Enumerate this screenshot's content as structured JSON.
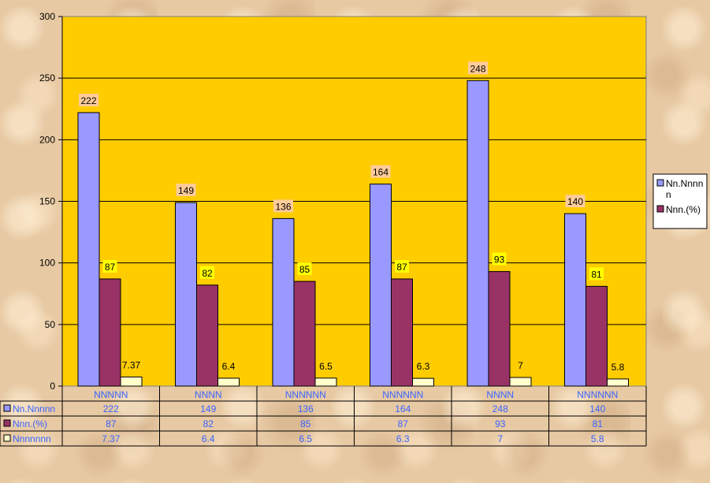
{
  "chart_data": {
    "type": "bar",
    "categories": [
      "NNNNN",
      "NNNN",
      "NNNNNN",
      "NNNNNN",
      "NNNN",
      "NNNNNN"
    ],
    "series": [
      {
        "name": "Nn.Nnnnn",
        "legend_label": "Nn.Nnnn n",
        "values": [
          222,
          149,
          136,
          164,
          248,
          140
        ],
        "color": "#9999ff",
        "label_bg": "#ffcc99"
      },
      {
        "name": "Nnn.(%)",
        "values": [
          87,
          82,
          85,
          87,
          93,
          81
        ],
        "color": "#993366",
        "label_bg": "#ffff00"
      },
      {
        "name": "Nnnnnnn",
        "values": [
          "7.37",
          "6.4",
          "6.5",
          "6.3",
          "7",
          "5.8"
        ],
        "color": "#ffffcc",
        "label_bg": ""
      }
    ],
    "title": "",
    "xlabel": "",
    "ylabel": "",
    "ylim": [
      0,
      300
    ],
    "yticks": [
      "0",
      "50",
      "100",
      "150",
      "200",
      "250",
      "300"
    ],
    "grid": true,
    "legend": "right",
    "plot_bg": "#ffcc00"
  }
}
